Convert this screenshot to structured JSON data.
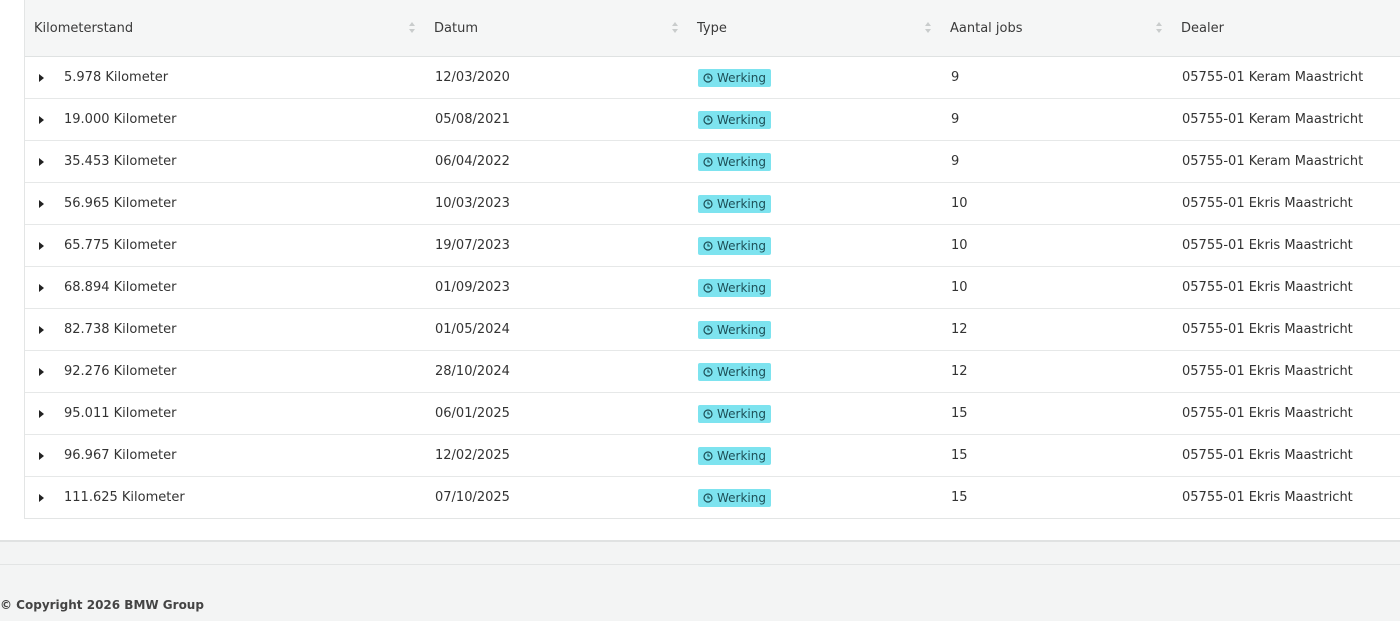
{
  "table": {
    "headers": [
      "Kilometerstand",
      "Datum",
      "Type",
      "Aantal jobs",
      "Dealer"
    ],
    "rows": [
      [
        "5.978 Kilometer",
        "12/03/2020",
        "Werking",
        "9",
        "05755-01 Keram Maastricht"
      ],
      [
        "19.000 Kilometer",
        "05/08/2021",
        "Werking",
        "9",
        "05755-01 Keram Maastricht"
      ],
      [
        "35.453 Kilometer",
        "06/04/2022",
        "Werking",
        "9",
        "05755-01 Keram Maastricht"
      ],
      [
        "56.965 Kilometer",
        "10/03/2023",
        "Werking",
        "10",
        "05755-01 Ekris Maastricht"
      ],
      [
        "65.775 Kilometer",
        "19/07/2023",
        "Werking",
        "10",
        "05755-01 Ekris Maastricht"
      ],
      [
        "68.894 Kilometer",
        "01/09/2023",
        "Werking",
        "10",
        "05755-01 Ekris Maastricht"
      ],
      [
        "82.738 Kilometer",
        "01/05/2024",
        "Werking",
        "12",
        "05755-01 Ekris Maastricht"
      ],
      [
        "92.276 Kilometer",
        "28/10/2024",
        "Werking",
        "12",
        "05755-01 Ekris Maastricht"
      ],
      [
        "95.011 Kilometer",
        "06/01/2025",
        "Werking",
        "15",
        "05755-01 Ekris Maastricht"
      ],
      [
        "96.967 Kilometer",
        "12/02/2025",
        "Werking",
        "15",
        "05755-01 Ekris Maastricht"
      ],
      [
        "111.625 Kilometer",
        "07/10/2025",
        "Werking",
        "15",
        "05755-01 Ekris Maastricht"
      ]
    ]
  },
  "footer": {
    "copyright": "© Copyright 2026 BMW Group"
  }
}
